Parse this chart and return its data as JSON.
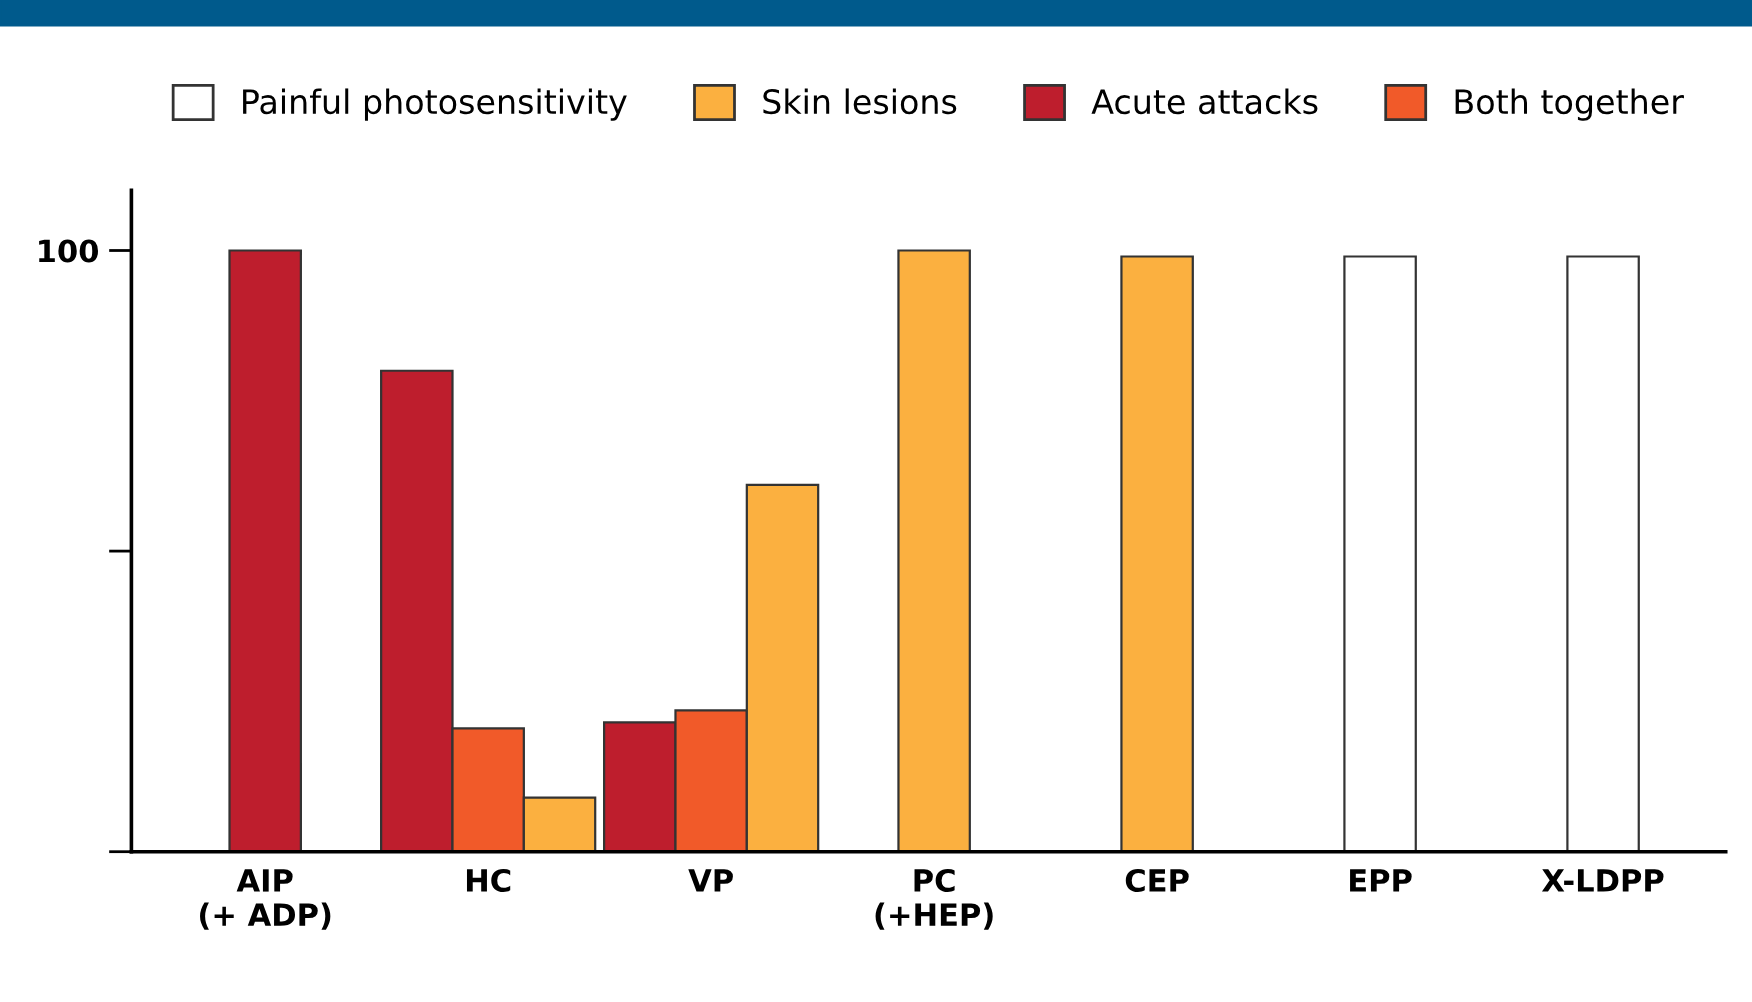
{
  "chart_data": {
    "type": "bar",
    "categories": [
      "AIP\n(+ ADP)",
      "HC",
      "VP",
      "PC\n(+HEP)",
      "CEP",
      "EPP",
      "X-LDPP"
    ],
    "series": [
      {
        "name": "Painful photosensitivity",
        "color": "#ffffff",
        "values": [
          null,
          null,
          null,
          null,
          null,
          99,
          99
        ]
      },
      {
        "name": "Skin lesions",
        "color": "#fbb040",
        "values": [
          null,
          9,
          61,
          100,
          99,
          null,
          null
        ]
      },
      {
        "name": "Acute attacks",
        "color": "#be1e2d",
        "values": [
          100,
          80,
          21.5,
          null,
          null,
          null,
          null
        ]
      },
      {
        "name": "Both together",
        "color": "#f15a29",
        "values": [
          null,
          20.5,
          23.5,
          null,
          null,
          null,
          null
        ]
      }
    ],
    "ylim": [
      0,
      110
    ],
    "yticks": [
      {
        "value": 0,
        "label": null
      },
      {
        "value": 50,
        "label": null
      },
      100
    ],
    "grid": false,
    "legend": "top"
  }
}
